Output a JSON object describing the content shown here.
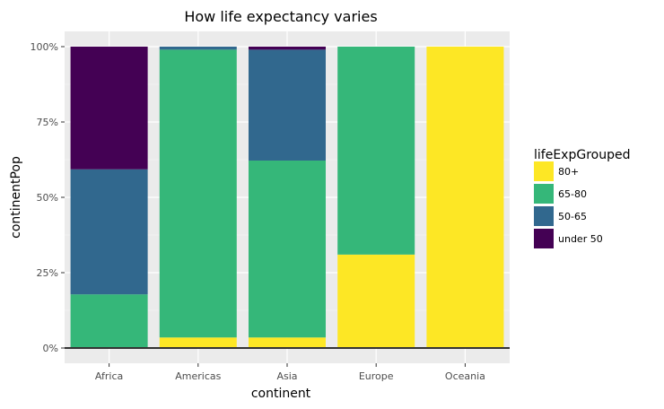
{
  "chart_data": {
    "type": "bar",
    "stacked": true,
    "title": "How life expectancy varies",
    "xlabel": "continent",
    "ylabel": "continentPop",
    "categories": [
      "Africa",
      "Americas",
      "Asia",
      "Europe",
      "Oceania"
    ],
    "ylim": [
      0,
      1
    ],
    "yticks": [
      0,
      0.25,
      0.5,
      0.75,
      1.0
    ],
    "ytick_labels": [
      "0%",
      "25%",
      "50%",
      "75%",
      "100%"
    ],
    "grid": true,
    "legend": {
      "title": "lifeExpGrouped",
      "position": "right"
    },
    "series": [
      {
        "name": "80+",
        "color": "#fde725",
        "values": [
          0.0,
          0.035,
          0.035,
          0.31,
          1.0
        ]
      },
      {
        "name": "65-80",
        "color": "#35b779",
        "values": [
          0.178,
          0.955,
          0.587,
          0.69,
          0.0
        ]
      },
      {
        "name": "50-65",
        "color": "#31688e",
        "values": [
          0.415,
          0.01,
          0.368,
          0.0,
          0.0
        ]
      },
      {
        "name": "under 50",
        "color": "#440154",
        "values": [
          0.407,
          0.0,
          0.01,
          0.0,
          0.0
        ]
      }
    ]
  }
}
